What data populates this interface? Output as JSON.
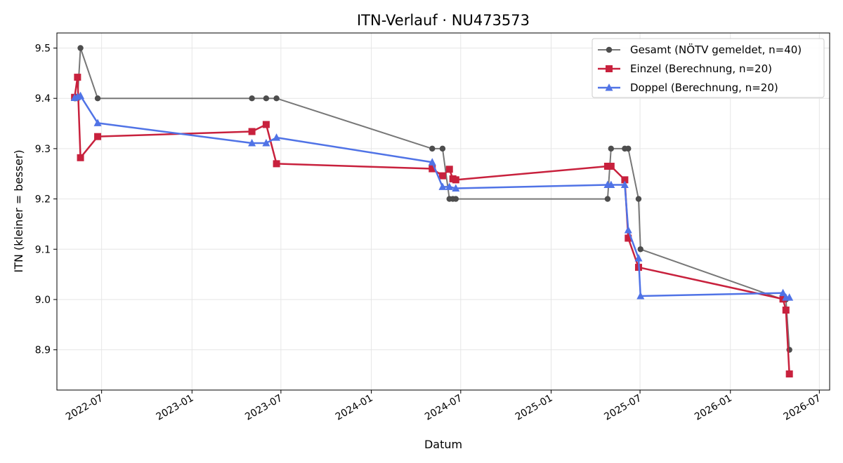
{
  "chart_data": {
    "type": "line",
    "title": "ITN-Verlauf · NU473573",
    "xlabel": "Datum",
    "ylabel": "ITN  (kleiner = besser)",
    "x_is_date": true,
    "xlim": [
      "2022-04-01",
      "2026-07-22"
    ],
    "ylim": [
      8.82,
      9.53
    ],
    "x_ticks": [
      "2022-07-01",
      "2023-01-01",
      "2023-07-01",
      "2024-01-01",
      "2024-07-01",
      "2025-01-01",
      "2025-07-01",
      "2026-01-01",
      "2026-07-01"
    ],
    "x_tick_labels": [
      "2022-07",
      "2023-01",
      "2023-07",
      "2024-01",
      "2024-07",
      "2025-01",
      "2025-07",
      "2026-01",
      "2026-07"
    ],
    "y_ticks": [
      8.9,
      9.0,
      9.1,
      9.2,
      9.3,
      9.4,
      9.5
    ],
    "y_tick_labels": [
      "8.9",
      "9.0",
      "9.1",
      "9.2",
      "9.3",
      "9.4",
      "9.5"
    ],
    "grid": true,
    "legend_position": "top-right",
    "series": [
      {
        "name": "Gesamt (NÖTV gemeldet, n=40)",
        "color": "#777777",
        "marker_color": "#4d4d4d",
        "marker": "circle",
        "points": [
          [
            "2022-05-07",
            9.4
          ],
          [
            "2022-05-09",
            9.4
          ],
          [
            "2022-05-13",
            9.4
          ],
          [
            "2022-05-19",
            9.5
          ],
          [
            "2022-06-23",
            9.4
          ],
          [
            "2023-05-03",
            9.4
          ],
          [
            "2023-06-01",
            9.4
          ],
          [
            "2023-06-22",
            9.4
          ],
          [
            "2024-05-04",
            9.3
          ],
          [
            "2024-05-25",
            9.3
          ],
          [
            "2024-06-08",
            9.2
          ],
          [
            "2024-06-15",
            9.2
          ],
          [
            "2024-06-21",
            9.2
          ],
          [
            "2025-04-26",
            9.2
          ],
          [
            "2025-05-03",
            9.3
          ],
          [
            "2025-05-31",
            9.3
          ],
          [
            "2025-06-07",
            9.3
          ],
          [
            "2025-06-28",
            9.2
          ],
          [
            "2025-07-02",
            9.1
          ],
          [
            "2026-04-18",
            9.0
          ],
          [
            "2026-04-24",
            9.0
          ],
          [
            "2026-05-01",
            8.9
          ]
        ]
      },
      {
        "name": "Einzel (Berechnung, n=20)",
        "color": "#c8213d",
        "marker": "square",
        "points": [
          [
            "2022-05-07",
            9.402
          ],
          [
            "2022-05-13",
            9.442
          ],
          [
            "2022-05-19",
            9.282
          ],
          [
            "2022-06-23",
            9.324
          ],
          [
            "2023-05-03",
            9.334
          ],
          [
            "2023-06-01",
            9.348
          ],
          [
            "2023-06-22",
            9.27
          ],
          [
            "2024-05-04",
            9.26
          ],
          [
            "2024-05-25",
            9.246
          ],
          [
            "2024-06-08",
            9.259
          ],
          [
            "2024-06-15",
            9.24
          ],
          [
            "2024-06-21",
            9.238
          ],
          [
            "2025-04-26",
            9.265
          ],
          [
            "2025-05-03",
            9.265
          ],
          [
            "2025-05-31",
            9.238
          ],
          [
            "2025-06-07",
            9.122
          ],
          [
            "2025-06-28",
            9.064
          ],
          [
            "2026-04-18",
            9.001
          ],
          [
            "2026-04-24",
            8.979
          ],
          [
            "2026-05-01",
            8.852
          ]
        ]
      },
      {
        "name": "Doppel (Berechnung, n=20)",
        "color": "#5073e6",
        "marker": "triangle",
        "points": [
          [
            "2022-05-07",
            9.401
          ],
          [
            "2022-05-13",
            9.403
          ],
          [
            "2022-05-19",
            9.405
          ],
          [
            "2022-06-23",
            9.351
          ],
          [
            "2023-05-03",
            9.311
          ],
          [
            "2023-06-01",
            9.311
          ],
          [
            "2023-06-22",
            9.322
          ],
          [
            "2024-05-04",
            9.273
          ],
          [
            "2024-05-25",
            9.224
          ],
          [
            "2024-06-08",
            9.224
          ],
          [
            "2024-06-21",
            9.221
          ],
          [
            "2025-04-26",
            9.228
          ],
          [
            "2025-05-03",
            9.228
          ],
          [
            "2025-05-31",
            9.228
          ],
          [
            "2025-06-07",
            9.138
          ],
          [
            "2025-06-28",
            9.082
          ],
          [
            "2025-07-02",
            9.007
          ],
          [
            "2026-04-18",
            9.013
          ],
          [
            "2026-04-24",
            9.004
          ],
          [
            "2026-05-01",
            9.004
          ]
        ]
      }
    ]
  }
}
